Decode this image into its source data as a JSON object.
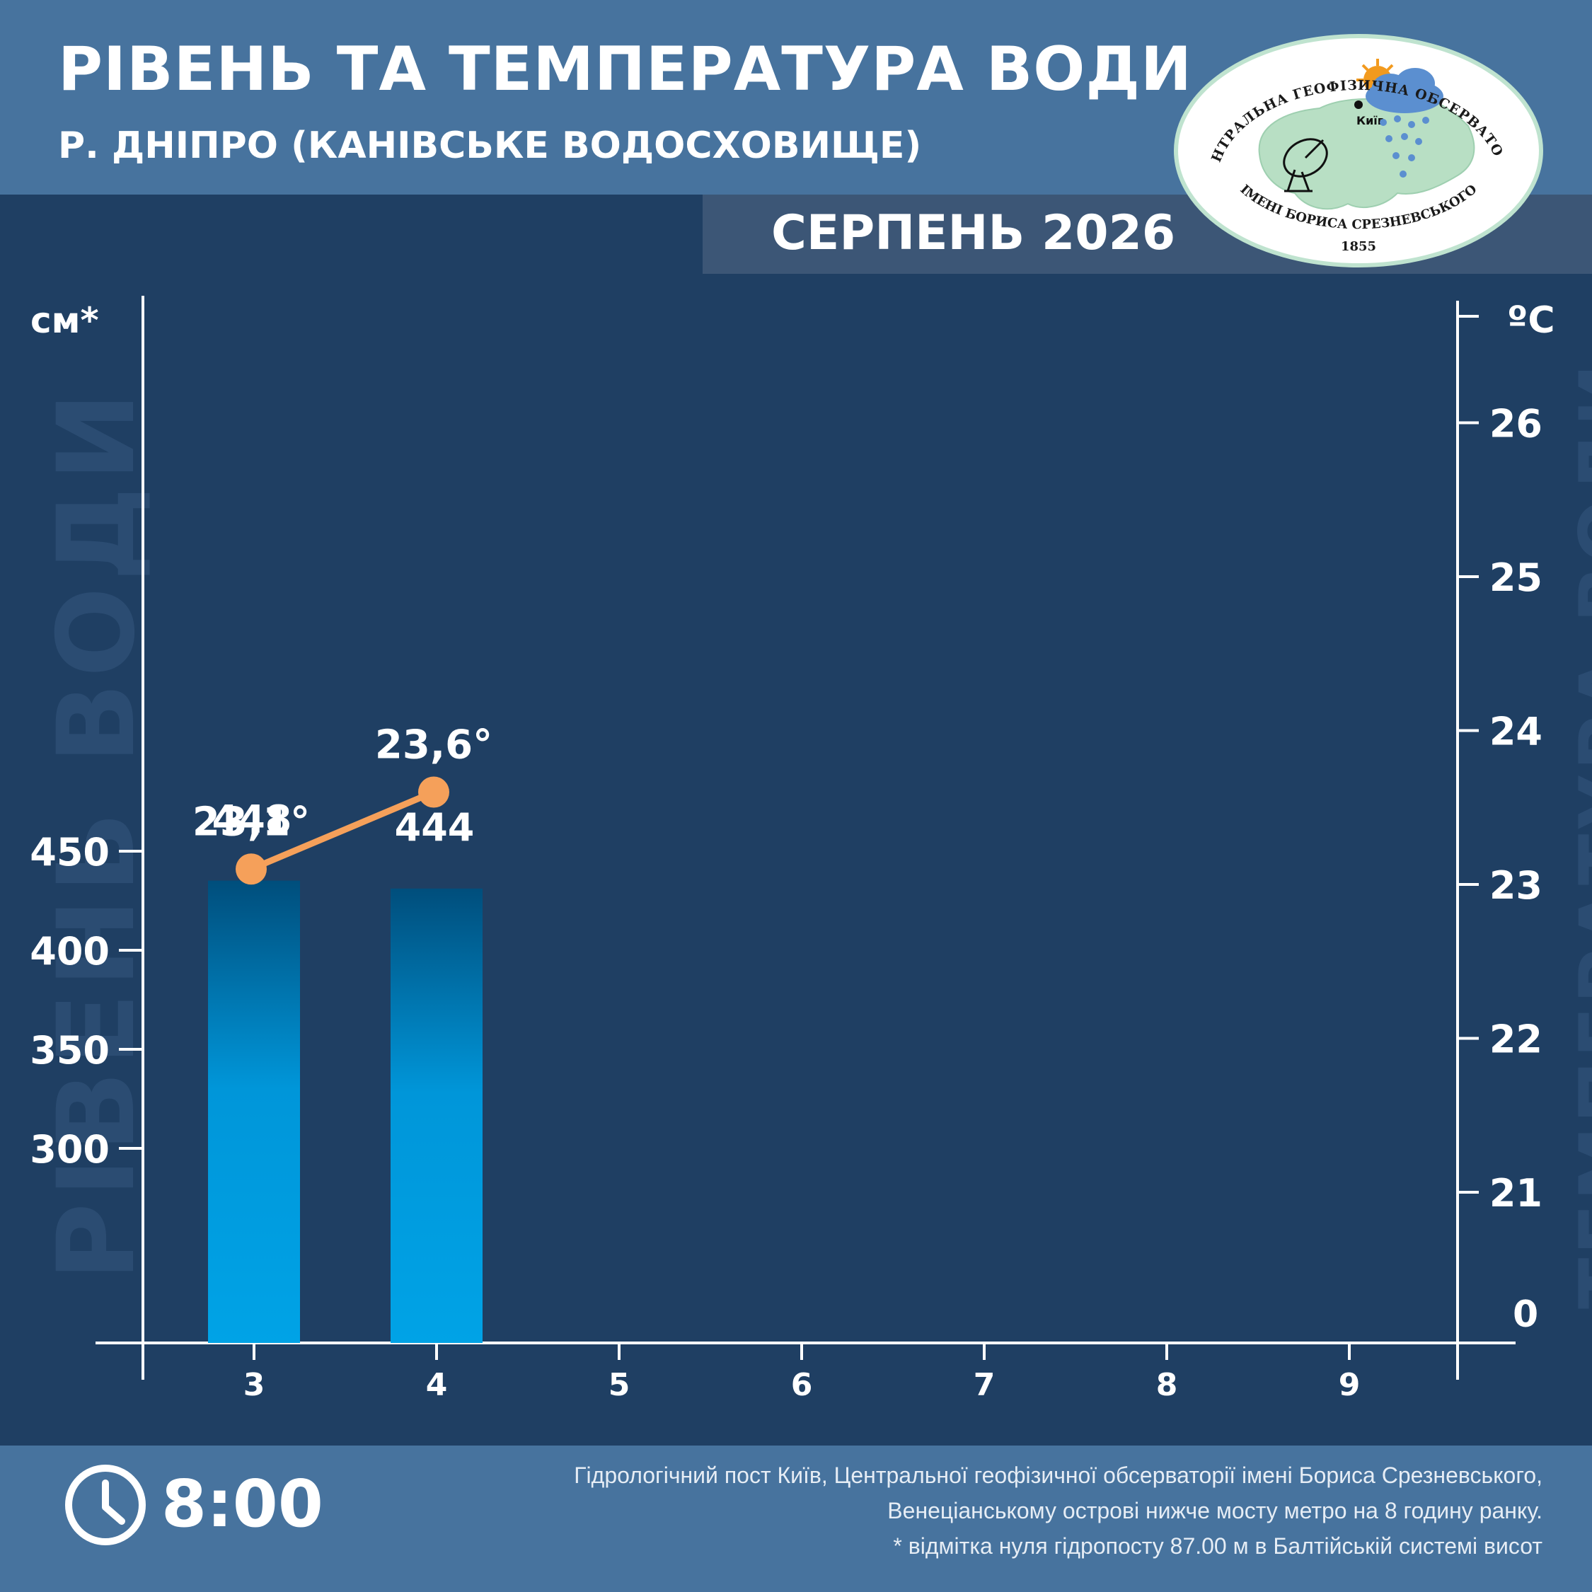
{
  "header": {
    "title": "РІВЕНЬ ТА ТЕМПЕРАТУРА ВОДИ",
    "subtitle": "Р. ДНІПРО (КАНІВСЬКЕ ВОДОСХОВИЩЕ)",
    "month": "СЕРПЕНЬ 2026"
  },
  "logo": {
    "top_text": "ЦЕНТРАЛЬНА ГЕОФІЗИЧНА ОБСЕРВАТОРІЯ",
    "bottom_text": "ІМЕНІ БОРИСА СРЕЗНЕВСЬКОГО",
    "year": "1855",
    "city": "Київ"
  },
  "watermarks": {
    "left": "РІВЕНЬ ВОДИ",
    "right": "ТЕМПЕРАТУРА ВОДИ"
  },
  "chart_data": {
    "type": "bar",
    "categories": [
      "3",
      "4",
      "5",
      "6",
      "7",
      "8",
      "9"
    ],
    "left_axis": {
      "unit": "см*",
      "ticks": [
        300,
        350,
        400,
        450
      ]
    },
    "right_axis": {
      "unit": "ºC",
      "ticks": [
        {
          "value": 21,
          "label": "21"
        },
        {
          "value": 22,
          "label": "22"
        },
        {
          "value": 23,
          "label": "23"
        },
        {
          "value": 24,
          "label": "24"
        },
        {
          "value": 25,
          "label": "25"
        },
        {
          "value": 26,
          "label": "26"
        }
      ],
      "zero_label": "0"
    },
    "water_level": {
      "categories": [
        "3",
        "4"
      ],
      "values": [
        448,
        444
      ],
      "labels": [
        "448",
        "444"
      ]
    },
    "water_temperature": {
      "categories": [
        "3",
        "4"
      ],
      "values": [
        23.1,
        23.6
      ],
      "labels": [
        "23,1°",
        "23,6°"
      ]
    },
    "colors": {
      "background": "#1f3f63",
      "bar_top": "#004e7c",
      "bar_bottom": "#00a3e6",
      "temperature_line": "#f5a05a",
      "axis": "#ffffff"
    }
  },
  "footer": {
    "time": "8:00",
    "note_lines": [
      "Гідрологічний пост Київ, Центральної геофізичної обсерваторії імені Бориса Срезневського,",
      "Венеціанському острові нижче мосту метро  на 8 годину ранку.",
      "* відмітка нуля гідропосту 87.00 м в Балтійській системі висот"
    ]
  }
}
